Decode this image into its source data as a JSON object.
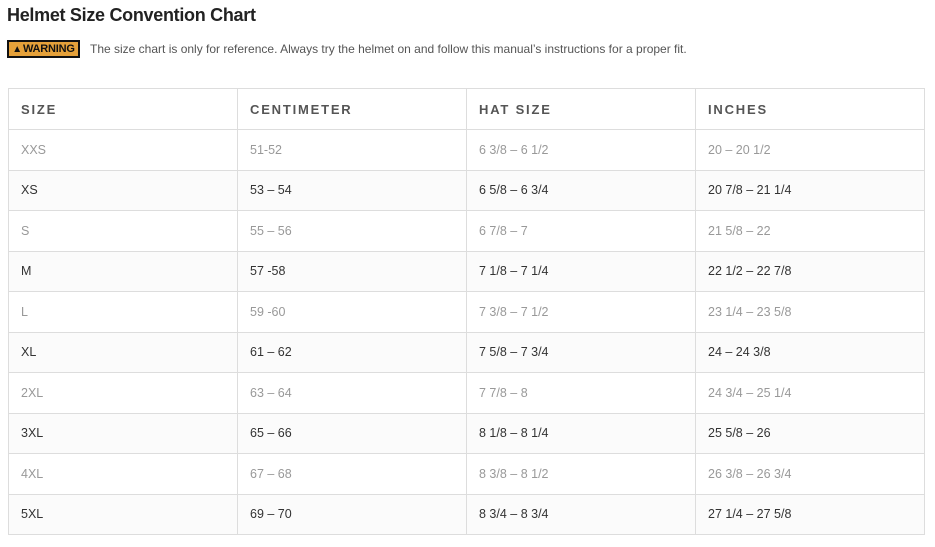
{
  "title": "Helmet Size Convention Chart",
  "warning": {
    "badge": "WARNING",
    "icon": "warning-triangle-icon",
    "badge_color": "#e5a13a",
    "message": "The size chart is only for reference. Always try the helmet on and follow this manual’s instructions for a proper fit."
  },
  "table": {
    "headers": [
      "SIZE",
      "CENTIMETER",
      "HAT SIZE",
      "INCHES"
    ],
    "rows": [
      [
        "XXS",
        "51-52",
        "6 3/8 – 6 1/2",
        "20 – 20 1/2"
      ],
      [
        "XS",
        "53 – 54",
        "6 5/8 – 6 3/4",
        "20 7/8 – 21 1/4"
      ],
      [
        "S",
        "55 – 56",
        "6 7/8 – 7",
        "21 5/8 – 22"
      ],
      [
        "M",
        "57 -58",
        "7 1/8 – 7 1/4",
        "22 1/2 – 22 7/8"
      ],
      [
        "L",
        "59 -60",
        "7 3/8 – 7 1/2",
        "23 1/4 – 23 5/8"
      ],
      [
        "XL",
        "61 – 62",
        "7 5/8 – 7 3/4",
        "24 – 24 3/8"
      ],
      [
        "2XL",
        "63 – 64",
        "7 7/8 – 8",
        "24 3/4 – 25 1/4"
      ],
      [
        "3XL",
        "65 – 66",
        "8 1/8 – 8 1/4",
        "25 5/8 – 26"
      ],
      [
        "4XL",
        "67 – 68",
        "8 3/8 – 8 1/2",
        "26 3/8 – 26 3/4"
      ],
      [
        "5XL",
        "69 – 70",
        "8 3/4 – 8 3/4",
        "27 1/4 – 27 5/8"
      ]
    ]
  }
}
